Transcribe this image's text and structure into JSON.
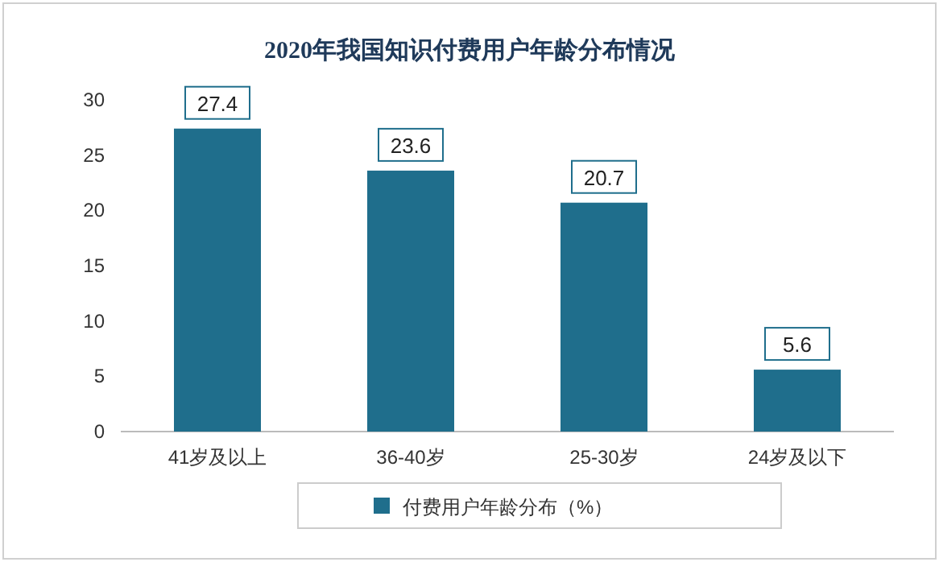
{
  "chart_data": {
    "type": "bar",
    "title": "2020年我国知识付费用户年龄分布情况",
    "categories": [
      "41岁及以上",
      "36-40岁",
      "25-30岁",
      "24岁及以下"
    ],
    "series": [
      {
        "name": "付费用户年龄分布（%）",
        "color": "#1f6e8c",
        "values": [
          27.4,
          23.6,
          20.7,
          5.6
        ]
      }
    ],
    "ylim": [
      0,
      30
    ],
    "yticks": [
      0,
      5,
      10,
      15,
      20,
      25,
      30
    ],
    "data_labels": true,
    "legend": "bottom"
  }
}
